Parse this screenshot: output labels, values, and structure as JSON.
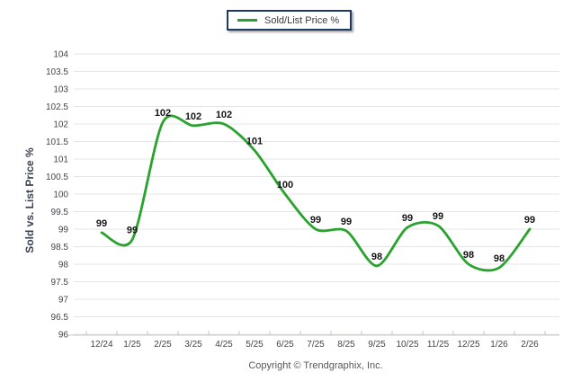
{
  "legend": {
    "label": "Sold/List Price %"
  },
  "y_axis_title": "Sold vs. List Price %",
  "footer": {
    "copyright": "Copyright © Trendgraphix, Inc."
  },
  "colors": {
    "line": "#29a32e",
    "grid": "#e5e5e5",
    "axis": "#c8c8c8",
    "tick_text": "#43434d",
    "data_label": "#141414",
    "legend_border": "#1e3a64",
    "copyright_text": "#58585a"
  },
  "chart_data": {
    "type": "line",
    "title": "",
    "series_name": "Sold/List Price %",
    "categories": [
      "12/24",
      "1/25",
      "2/25",
      "3/25",
      "4/25",
      "5/25",
      "6/25",
      "7/25",
      "8/25",
      "9/25",
      "10/25",
      "11/25",
      "12/25",
      "1/26",
      "2/26"
    ],
    "values": [
      99,
      99,
      102,
      102,
      102,
      101,
      100,
      99,
      99,
      98,
      99,
      99,
      98,
      98,
      99
    ],
    "point_labels": [
      "99",
      "99",
      "102",
      "102",
      "102",
      "101",
      "100",
      "99",
      "99",
      "98",
      "99",
      "99",
      "98",
      "98",
      "99"
    ],
    "plot_values_estimated": [
      98.9,
      98.7,
      102.05,
      101.95,
      102.0,
      101.25,
      100.0,
      99.0,
      98.95,
      97.95,
      99.05,
      99.1,
      98.0,
      97.9,
      99.0
    ],
    "xlabel": "",
    "ylabel": "Sold vs. List Price %",
    "ylim": [
      96,
      104
    ],
    "y_tick_step": 0.5,
    "grid": "horizontal",
    "smooth": true,
    "legend_position": "top-center"
  }
}
